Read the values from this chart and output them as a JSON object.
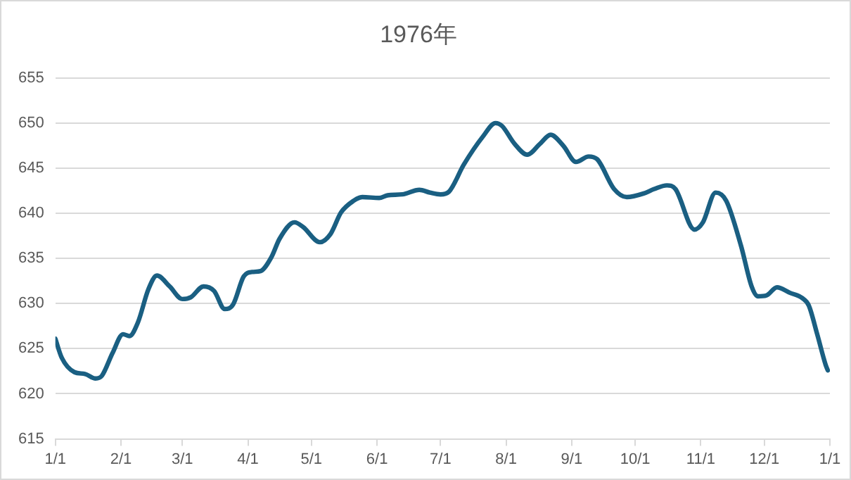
{
  "chart_data": {
    "type": "line",
    "title": "1976年",
    "x": [
      "1976-01-01",
      "1976-01-04",
      "1976-01-10",
      "1976-01-15",
      "1976-01-20",
      "1976-01-23",
      "1976-01-28",
      "1976-02-02",
      "1976-02-05",
      "1976-02-09",
      "1976-02-14",
      "1976-02-18",
      "1976-02-24",
      "1976-03-01",
      "1976-03-05",
      "1976-03-11",
      "1976-03-16",
      "1976-03-21",
      "1976-03-25",
      "1976-03-30",
      "1976-04-03",
      "1976-04-07",
      "1976-04-12",
      "1976-04-16",
      "1976-04-23",
      "1976-04-27",
      "1976-05-05",
      "1976-05-10",
      "1976-05-15",
      "1976-05-21",
      "1976-05-25",
      "1976-06-02",
      "1976-06-06",
      "1976-06-13",
      "1976-06-21",
      "1976-06-26",
      "1976-07-01",
      "1976-07-05",
      "1976-07-12",
      "1976-07-21",
      "1976-07-27",
      "1976-07-30",
      "1976-08-05",
      "1976-08-11",
      "1976-08-17",
      "1976-08-22",
      "1976-08-28",
      "1976-09-03",
      "1976-09-09",
      "1976-09-13",
      "1976-09-21",
      "1976-09-27",
      "1976-10-05",
      "1976-10-10",
      "1976-10-16",
      "1976-10-20",
      "1976-10-29",
      "1976-11-02",
      "1976-11-08",
      "1976-11-13",
      "1976-11-20",
      "1976-11-25",
      "1976-11-28",
      "1976-12-02",
      "1976-12-07",
      "1976-12-13",
      "1976-12-19",
      "1976-12-22",
      "1976-12-26",
      "1976-12-30",
      "1976-12-31"
    ],
    "series": [
      {
        "color": "#1a5f82",
        "values": [
          626.1,
          624.0,
          622.4,
          622.2,
          621.7,
          622.0,
          624.5,
          626.6,
          626.4,
          627.9,
          631.6,
          633.1,
          631.9,
          630.5,
          630.7,
          631.9,
          631.4,
          629.4,
          629.9,
          633.0,
          633.5,
          633.6,
          635.1,
          637.2,
          639.0,
          638.5,
          636.8,
          637.7,
          640.1,
          641.4,
          641.8,
          641.7,
          642.0,
          642.1,
          642.6,
          642.3,
          642.1,
          642.4,
          645.4,
          648.5,
          650.0,
          649.7,
          647.7,
          646.5,
          647.7,
          648.7,
          647.5,
          645.7,
          646.3,
          646.0,
          642.7,
          641.8,
          642.2,
          642.7,
          643.1,
          642.7,
          638.2,
          639.0,
          642.3,
          641.4,
          636.4,
          631.9,
          630.8,
          630.9,
          631.8,
          631.2,
          630.6,
          629.8,
          626.6,
          623.2,
          622.6
        ]
      }
    ],
    "xlim": [
      "1976-01-01",
      "1977-01-01"
    ],
    "xticks": [
      {
        "value": "1976-01-01",
        "label": "1/1"
      },
      {
        "value": "1976-02-01",
        "label": "2/1"
      },
      {
        "value": "1976-03-01",
        "label": "3/1"
      },
      {
        "value": "1976-04-01",
        "label": "4/1"
      },
      {
        "value": "1976-05-01",
        "label": "5/1"
      },
      {
        "value": "1976-06-01",
        "label": "6/1"
      },
      {
        "value": "1976-07-01",
        "label": "7/1"
      },
      {
        "value": "1976-08-01",
        "label": "8/1"
      },
      {
        "value": "1976-09-01",
        "label": "9/1"
      },
      {
        "value": "1976-10-01",
        "label": "10/1"
      },
      {
        "value": "1976-11-01",
        "label": "11/1"
      },
      {
        "value": "1976-12-01",
        "label": "12/1"
      },
      {
        "value": "1977-01-01",
        "label": "1/1"
      }
    ],
    "ylim": [
      615,
      655
    ],
    "yticks": [
      615,
      620,
      625,
      630,
      635,
      640,
      645,
      650,
      655
    ],
    "grid": "y",
    "legend": false,
    "marker": "none",
    "line_style": "solid"
  }
}
